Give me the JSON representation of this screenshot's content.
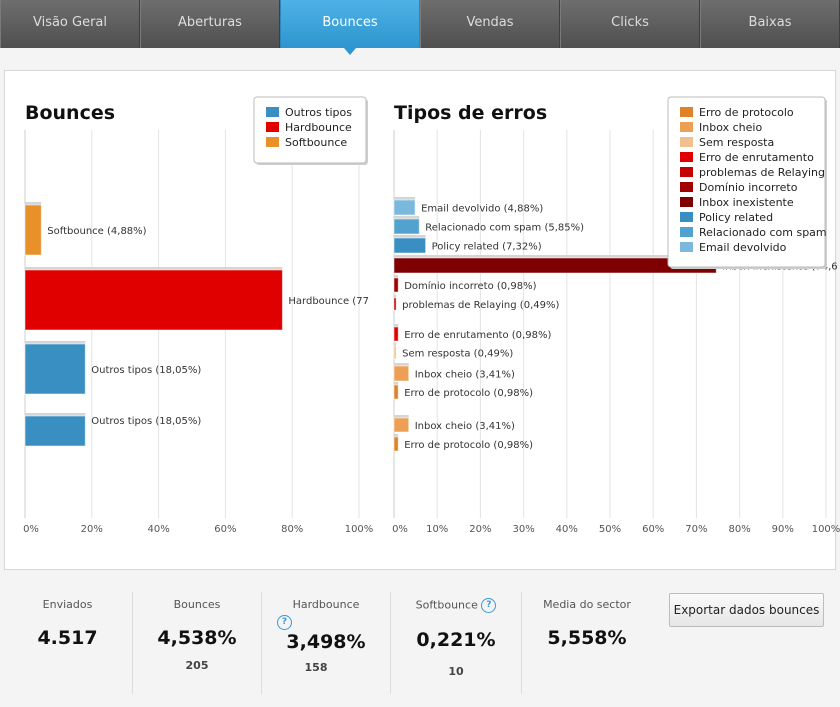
{
  "tabs": [
    {
      "label": "Visão Geral",
      "active": false
    },
    {
      "label": "Aberturas",
      "active": false
    },
    {
      "label": "Bounces",
      "active": true
    },
    {
      "label": "Vendas",
      "active": false
    },
    {
      "label": "Clicks",
      "active": false
    },
    {
      "label": "Baixas",
      "active": false
    }
  ],
  "chart_data": [
    {
      "type": "bar",
      "orientation": "horizontal",
      "title": "Bounces",
      "xlim": [
        0,
        100
      ],
      "ticks": [
        "0%",
        "20%",
        "40%",
        "60%",
        "80%",
        "100%"
      ],
      "grid": true,
      "legend_position": "top-right",
      "legend": [
        {
          "label": "Outros tipos",
          "color": "#3a8fc2"
        },
        {
          "label": "Hardbounce",
          "color": "#e00000"
        },
        {
          "label": "Softbounce",
          "color": "#e8902a"
        }
      ],
      "bars": [
        {
          "label": "Softbounce (4,88%)",
          "value": 4.88,
          "color": "#e8902a"
        },
        {
          "label": "Hardbounce (77",
          "value": 77.07,
          "color": "#e00000"
        },
        {
          "label": "Outros tipos (18,05%)",
          "value": 18.05,
          "color": "#3a8fc2"
        },
        {
          "label": "Outros tipos (18,05%)",
          "value": 18.05,
          "color": "#3a8fc2"
        }
      ]
    },
    {
      "type": "bar",
      "orientation": "horizontal",
      "title": "Tipos de erros",
      "xlim": [
        0,
        100
      ],
      "ticks": [
        "0%",
        "10%",
        "20%",
        "30%",
        "40%",
        "50%",
        "60%",
        "70%",
        "80%",
        "90%",
        "100%"
      ],
      "grid": true,
      "legend_position": "top-right",
      "legend": [
        {
          "label": "Erro de protocolo",
          "color": "#e0822a"
        },
        {
          "label": "Inbox cheio",
          "color": "#eda055"
        },
        {
          "label": "Sem resposta",
          "color": "#f2bf90"
        },
        {
          "label": "Erro de enrutamento",
          "color": "#e00000"
        },
        {
          "label": "problemas de Relaying",
          "color": "#c40000"
        },
        {
          "label": "Domínio incorreto",
          "color": "#a00000"
        },
        {
          "label": "Inbox inexistente",
          "color": "#7e0000"
        },
        {
          "label": "Policy related",
          "color": "#3a8fc2"
        },
        {
          "label": "Relacionado com spam",
          "color": "#52a2cf"
        },
        {
          "label": "Email devolvido",
          "color": "#7ab8de"
        }
      ],
      "bars": [
        {
          "label": "Email devolvido (4,88%)",
          "value": 4.88,
          "color": "#7ab8de"
        },
        {
          "label": "Relacionado com spam (5,85%)",
          "value": 5.85,
          "color": "#52a2cf"
        },
        {
          "label": "Policy related (7,32%)",
          "value": 7.32,
          "color": "#3a8fc2"
        },
        {
          "label": "Inbox inexistente (74,6",
          "value": 74.6,
          "color": "#7e0000"
        },
        {
          "label": "Domínio incorreto (0,98%)",
          "value": 0.98,
          "color": "#a00000"
        },
        {
          "label": "problemas de Relaying (0,49%)",
          "value": 0.49,
          "color": "#c40000"
        },
        {
          "label": "Erro de enrutamento (0,98%)",
          "value": 0.98,
          "color": "#e00000"
        },
        {
          "label": "Sem resposta (0,49%)",
          "value": 0.49,
          "color": "#f2bf90"
        },
        {
          "label": "Inbox cheio (3,41%)",
          "value": 3.41,
          "color": "#eda055"
        },
        {
          "label": "Erro de protocolo (0,98%)",
          "value": 0.98,
          "color": "#e0822a"
        },
        {
          "label": "Inbox cheio (3,41%)",
          "value": 3.41,
          "color": "#eda055"
        },
        {
          "label": "Erro de protocolo (0,98%)",
          "value": 0.98,
          "color": "#e0822a"
        }
      ]
    }
  ],
  "stats": {
    "enviados": {
      "label": "Enviados",
      "value": "4.517"
    },
    "bounces": {
      "label": "Bounces",
      "value": "4,538%",
      "sub": "205"
    },
    "hardbounce": {
      "label": "Hardbounce",
      "value": "3,498%",
      "sub": "158",
      "help": "?"
    },
    "softbounce": {
      "label": "Softbounce",
      "value": "0,221%",
      "sub": "10",
      "help": "?"
    },
    "media": {
      "label": "Media do sector",
      "value": "5,558%"
    },
    "export_label": "Exportar dados bounces"
  }
}
